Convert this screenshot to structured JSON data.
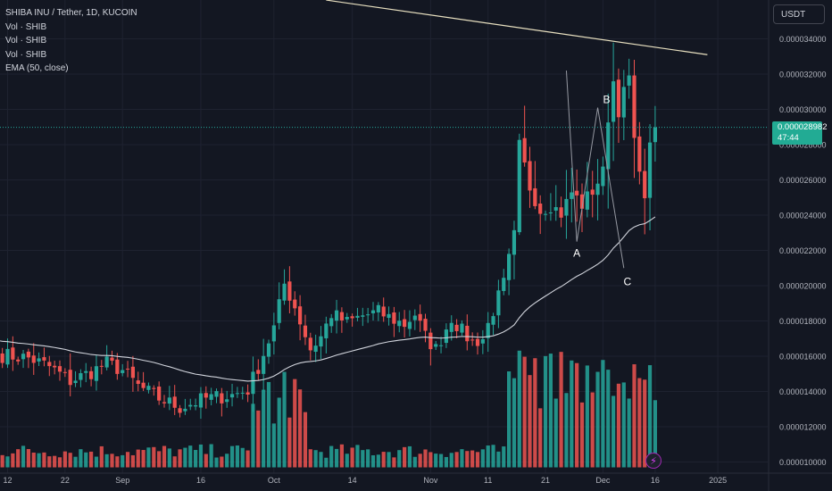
{
  "header": {
    "symbol_line": "SHIBA INU / Tether, 1D, KUCOIN",
    "indicators": [
      "Vol · SHIB",
      "Vol · SHIB",
      "Vol · SHIB",
      "EMA (50, close)"
    ],
    "currency_button": "USDT"
  },
  "last_price": {
    "value": "0.000028982",
    "countdown": "47:44"
  },
  "colors": {
    "background": "#131722",
    "bull": "#26a69a",
    "bear": "#ef5350",
    "ema": "#d1d4dc",
    "trendline": "#e8e0c0",
    "grid": "#1e2230"
  },
  "chart_data": {
    "type": "candlestick",
    "yaxis": {
      "ticks": [
        "0.000034000",
        "0.000032000",
        "0.000030000",
        "0.000028000",
        "0.000026000",
        "0.000024000",
        "0.000022000",
        "0.000020000",
        "0.000018000",
        "0.000016000",
        "0.000014000",
        "0.000012000",
        "0.000010000"
      ],
      "range": [
        9.4e-06,
        3.56e-05
      ]
    },
    "xaxis": {
      "labels": [
        "12",
        "22",
        "Sep",
        "16",
        "Oct",
        "14",
        "Nov",
        "11",
        "21",
        "Dec",
        "16",
        "2025"
      ]
    },
    "wave_labels": [
      "A",
      "B",
      "C"
    ],
    "wave_points": [
      {
        "label": "start",
        "date_index": 117,
        "price": 3.22e-05
      },
      {
        "label": "A",
        "date_index": 119,
        "price": 2.25e-05
      },
      {
        "label": "B",
        "date_index": 123,
        "price": 3.01e-05
      },
      {
        "label": "C",
        "date_index": 128,
        "price": 2.1e-05
      }
    ],
    "trendline": {
      "from": {
        "date_index": 71,
        "price": 3.62e-05
      },
      "to": {
        "date_index": 144,
        "price": 3.31e-05
      }
    },
    "volume_base": 1.01e-05,
    "volume_scale_max": 1.63e-05,
    "ema_period": 50
  }
}
